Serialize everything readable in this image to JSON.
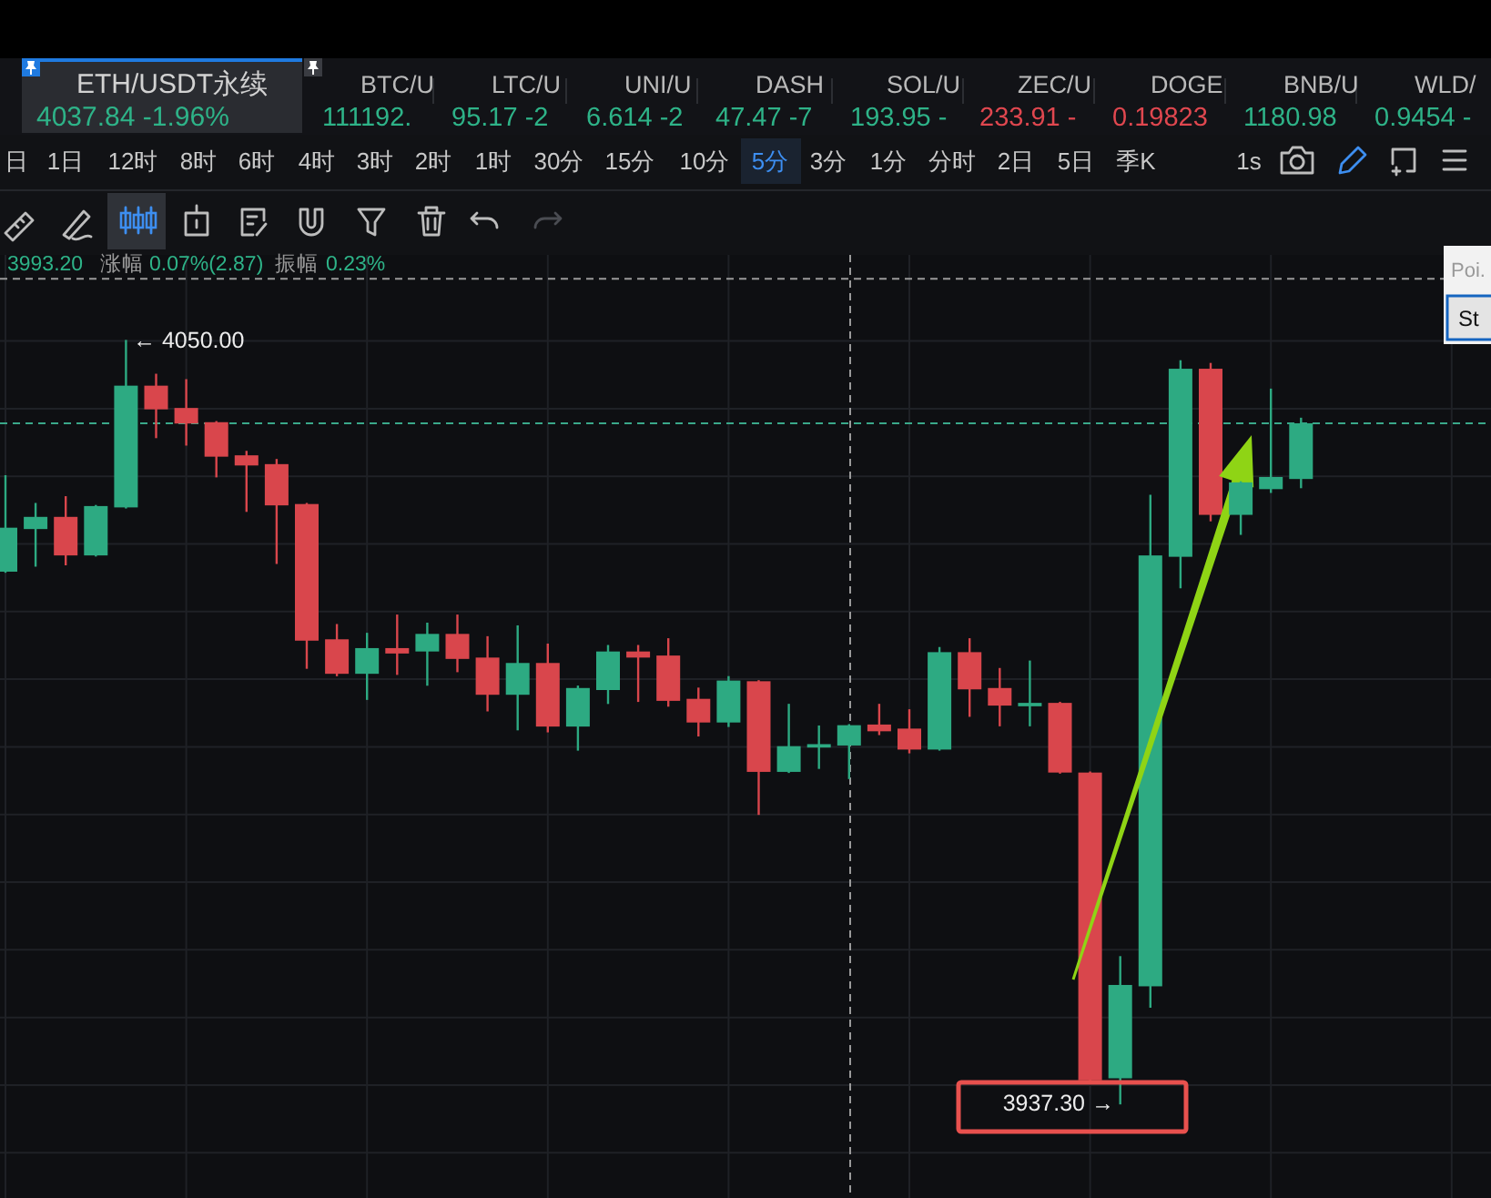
{
  "chart_data": {
    "type": "candlestick",
    "title": "ETH/USDT永续",
    "subtitle": "4037.84 -1.96%",
    "categories": [
      null,
      null,
      null,
      null,
      null,
      null,
      null,
      null,
      null,
      null,
      null,
      null,
      null,
      null,
      null,
      null,
      null,
      null,
      null,
      null,
      null,
      null,
      null,
      null,
      null,
      null,
      null,
      null,
      null,
      null,
      null,
      null,
      null,
      null,
      null,
      null,
      null,
      null,
      null,
      null,
      null,
      null,
      null,
      null
    ],
    "ohlc": [
      [
        4015.9,
        4030.0,
        4015.9,
        4022.4
      ],
      [
        4022.2,
        4025.9,
        4016.8,
        4024.0
      ],
      [
        4024.0,
        4026.9,
        4017.0,
        4018.3
      ],
      [
        4018.3,
        4025.6,
        4018.3,
        4025.6
      ],
      [
        4025.4,
        4050.0,
        4025.4,
        4043.4
      ],
      [
        4043.4,
        4045.0,
        4035.8,
        4039.9
      ],
      [
        4040.1,
        4044.2,
        4034.7,
        4037.8
      ],
      [
        4038.0,
        4038.0,
        4030.0,
        4032.9
      ],
      [
        4033.1,
        4033.6,
        4024.9,
        4031.6
      ],
      [
        4031.8,
        4032.4,
        4017.2,
        4025.7
      ],
      [
        4025.9,
        4025.9,
        4001.7,
        4005.7
      ],
      [
        4005.9,
        4008.0,
        4000.6,
        4000.8
      ],
      [
        4000.8,
        4006.7,
        3997.1,
        4004.6
      ],
      [
        4004.6,
        4009.4,
        4000.8,
        4003.8
      ],
      [
        4004.1,
        4008.2,
        3999.2,
        4006.7
      ],
      [
        4006.7,
        4009.4,
        4001.2,
        4003.0
      ],
      [
        4003.2,
        4006.2,
        3995.4,
        3997.7
      ],
      [
        3997.7,
        4007.8,
        3992.6,
        4002.4
      ],
      [
        4002.4,
        4005.1,
        3992.3,
        3993.0
      ],
      [
        3993.0,
        3998.9,
        3989.6,
        3998.7
      ],
      [
        3998.4,
        4004.9,
        3996.5,
        4004.1
      ],
      [
        4004.1,
        4004.9,
        3996.8,
        4003.2
      ],
      [
        4003.5,
        4005.9,
        3996.1,
        3996.8
      ],
      [
        3997.1,
        3998.6,
        3991.7,
        3993.6
      ],
      [
        3993.6,
        4000.3,
        3993.1,
        3999.8
      ],
      [
        3999.7,
        3999.7,
        3980.1,
        3986.3
      ],
      [
        3986.3,
        3996.2,
        3986.3,
        3990.1
      ],
      [
        3989.9,
        3993.0,
        3986.9,
        3990.4
      ],
      [
        3990.2,
        3993.2,
        3985.4,
        3993.2
      ],
      [
        3993.3,
        3996.2,
        3991.9,
        3992.3
      ],
      [
        3992.7,
        3995.4,
        3989.2,
        3989.6
      ],
      [
        3989.6,
        4004.6,
        3989.6,
        4004.0
      ],
      [
        4004.0,
        4005.9,
        3994.6,
        3998.5
      ],
      [
        3998.7,
        4001.5,
        3993.2,
        3996.1
      ],
      [
        3996.0,
        4002.6,
        3993.2,
        3996.5
      ],
      [
        3996.5,
        3996.5,
        3986.2,
        3986.2
      ],
      [
        3986.2,
        3986.2,
        3940.3,
        3940.7
      ],
      [
        3941.0,
        3958.9,
        3937.3,
        3954.8
      ],
      [
        3954.6,
        4027.1,
        3951.6,
        4018.3
      ],
      [
        4018.1,
        4047.0,
        4013.6,
        4045.9
      ],
      [
        4045.9,
        4046.6,
        4023.5,
        4024.3
      ],
      [
        4024.3,
        4029.1,
        4021.5,
        4029.1
      ],
      [
        4028.1,
        4042.8,
        4027.7,
        4029.9
      ],
      [
        4029.6,
        4038.5,
        4028.4,
        4037.84
      ]
    ],
    "colors": [
      "#2daa82",
      "#2daa82",
      "#d9464c",
      "#2daa82",
      "#2daa82",
      "#d9464c",
      "#d9464c",
      "#d9464c",
      "#d9464c",
      "#d9464c",
      "#d9464c",
      "#d9464c",
      "#2daa82",
      "#d9464c",
      "#2daa82",
      "#d9464c",
      "#d9464c",
      "#2daa82",
      "#d9464c",
      "#2daa82",
      "#2daa82",
      "#d9464c",
      "#d9464c",
      "#d9464c",
      "#2daa82",
      "#d9464c",
      "#2daa82",
      "#2daa82",
      "#2daa82",
      "#d9464c",
      "#d9464c",
      "#2daa82",
      "#d9464c",
      "#d9464c",
      "#2daa82",
      "#d9464c",
      "#d9464c",
      "#2daa82",
      "#2daa82",
      "#2daa82",
      "#d9464c",
      "#2daa82",
      "#2daa82",
      "#2daa82"
    ],
    "grid": true,
    "yticks": [
      {
        "value": 3930,
        "label": null
      },
      {
        "value": 3940,
        "label": null
      },
      {
        "value": 3950,
        "label": null
      },
      {
        "value": 3960,
        "label": null
      },
      {
        "value": 3970,
        "label": null
      },
      {
        "value": 3980,
        "label": null
      },
      {
        "value": 3990,
        "label": null
      },
      {
        "value": 4000,
        "label": null
      },
      {
        "value": 4010,
        "label": null
      },
      {
        "value": 4020,
        "label": null
      },
      {
        "value": 4030,
        "label": null
      },
      {
        "value": 4040,
        "label": null
      },
      {
        "value": 4050,
        "label": null
      }
    ],
    "ref_lines": [
      {
        "axis": "y",
        "value": 4037.84,
        "color": "#3aa88a",
        "line_style": "dashed"
      },
      {
        "axis": "y",
        "value": 4059.2,
        "color": "#9a9a9a",
        "line_style": "dashed"
      }
    ],
    "annotations": [
      "← 4050.00",
      "3937.30 →",
      "BTC/U",
      "111192.",
      "LTC/U",
      "95.17 -2",
      "UNI/U",
      "6.614 -2",
      "DASH",
      "47.47 -7",
      "SOL/U",
      "193.95 -",
      "ZEC/U",
      "233.91 -",
      "DOGE",
      "0.19823",
      "BNB/U",
      "1180.98",
      "WLD/",
      "0.9454 -",
      "日",
      "1日",
      "12时",
      "8时",
      "6时",
      "4时",
      "3时",
      "2时",
      "1时",
      "30分",
      "15分",
      "10分",
      "5分",
      "3分",
      "1分",
      "分时",
      "2日",
      "5日",
      "季K",
      "1s",
      "3993.20",
      "涨幅",
      "0.07%(2.87)",
      "振幅",
      "0.23%",
      "Poi.",
      "St"
    ]
  }
}
